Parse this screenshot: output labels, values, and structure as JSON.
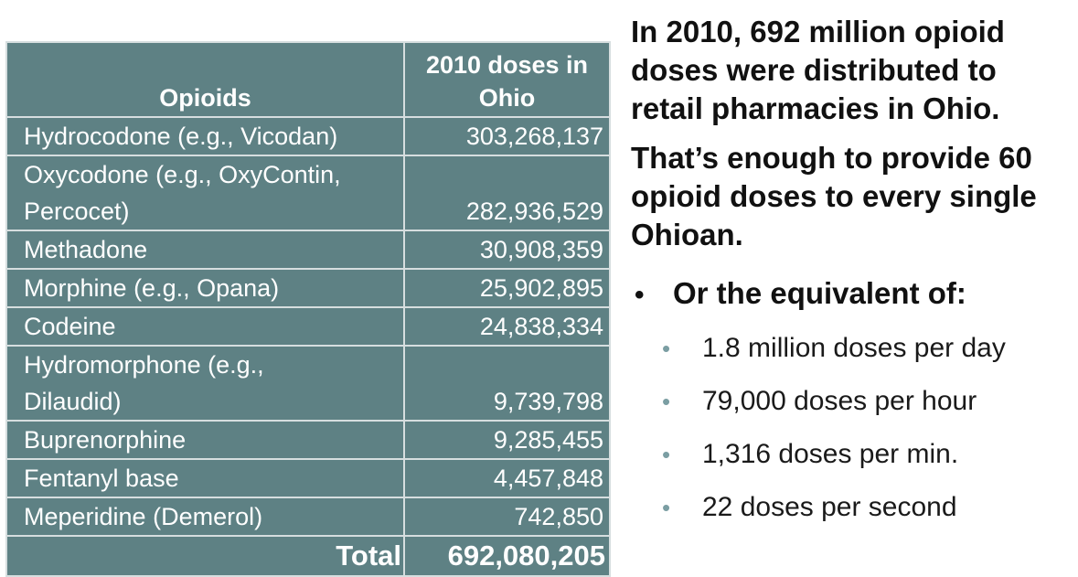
{
  "table": {
    "header": {
      "col1": "Opioids",
      "col2": "2010 doses in Ohio"
    },
    "rows": [
      {
        "name": "Hydrocodone (e.g., Vicodan)",
        "doses": "303,268,137"
      },
      {
        "name": "Oxycodone (e.g., OxyContin, Percocet)",
        "doses": "282,936,529"
      },
      {
        "name": "Methadone",
        "doses": "30,908,359"
      },
      {
        "name": "Morphine (e.g., Opana)",
        "doses": "25,902,895"
      },
      {
        "name": "Codeine",
        "doses": "24,838,334"
      },
      {
        "name": "Hydromorphone (e.g., Dilaudid)",
        "doses": "9,739,798"
      },
      {
        "name": "Buprenorphine",
        "doses": "9,285,455"
      },
      {
        "name": "Fentanyl base",
        "doses": "4,457,848"
      },
      {
        "name": "Meperidine (Demerol)",
        "doses": "742,850"
      }
    ],
    "total": {
      "label": "Total",
      "value": "692,080,205"
    }
  },
  "panel": {
    "headline1": "In 2010, 692 million opioid doses were distributed to retail pharmacies in Ohio.",
    "headline2": "That’s enough to provide 60 opioid doses to every single Ohioan.",
    "bullet_marker": "•",
    "bullet": "Or the equivalent of:",
    "sub_marker": "•",
    "sub_items": [
      "1.8 million doses per day",
      "79,000 doses per hour",
      "1,316 doses per min.",
      "22 doses per second"
    ]
  },
  "colors": {
    "table_background": "#5e8184",
    "table_border": "#d6dedf",
    "sub_bullet": "#7b9ea3"
  }
}
